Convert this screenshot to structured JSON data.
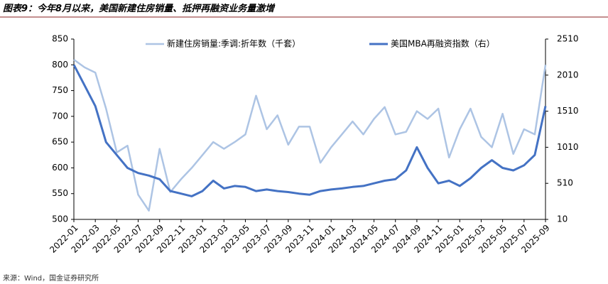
{
  "chart_data": {
    "type": "line",
    "title": "图表9：今年8月以来，美国新建住房销量、抵押再融资业务量激增",
    "source": "来源：Wind，国金证券研究所",
    "categories": [
      "2022-01",
      null,
      "2022-03",
      null,
      "2022-05",
      null,
      "2022-07",
      null,
      "2022-09",
      null,
      "2022-11",
      null,
      "2023-01",
      null,
      "2023-03",
      null,
      "2023-05",
      null,
      "2023-07",
      null,
      "2023-09",
      null,
      "2023-11",
      null,
      "2024-01",
      null,
      "2024-03",
      null,
      "2024-05",
      null,
      "2024-07",
      null,
      "2024-09",
      null,
      "2024-11",
      null,
      "2025-01",
      null,
      "2025-03",
      null,
      "2025-05",
      null,
      "2025-07",
      null,
      "2025-09"
    ],
    "ylim": [
      500,
      850
    ],
    "yticks": [
      500,
      550,
      600,
      650,
      700,
      750,
      800,
      850
    ],
    "y2lim": [
      10,
      2510
    ],
    "y2ticks": [
      10,
      510,
      1010,
      1510,
      2010,
      2510
    ],
    "legend": "top",
    "series": [
      {
        "name": "新建住房销量:季调:折年数（千套）",
        "color": "#adc4e4",
        "values": [
          810,
          795,
          785,
          715,
          630,
          643,
          548,
          517,
          637,
          553,
          578,
          600,
          625,
          650,
          637,
          650,
          665,
          740,
          675,
          702,
          645,
          680,
          680,
          610,
          640,
          665,
          690,
          665,
          695,
          718,
          665,
          670,
          710,
          695,
          715,
          620,
          675,
          715,
          660,
          640,
          705,
          627,
          675,
          665,
          800
        ]
      },
      {
        "name": "美国MBA再融资指数（右）",
        "color": "#4472c4",
        "axis": "y2",
        "values": [
          2153,
          1867,
          1581,
          1081,
          903,
          724,
          653,
          617,
          567,
          403,
          367,
          331,
          403,
          546,
          439,
          474,
          460,
          403,
          424,
          403,
          389,
          367,
          353,
          403,
          424,
          439,
          460,
          474,
          510,
          546,
          567,
          689,
          1010,
          724,
          510,
          546,
          474,
          581,
          724,
          831,
          724,
          689,
          760,
          903,
          1581
        ]
      }
    ]
  }
}
